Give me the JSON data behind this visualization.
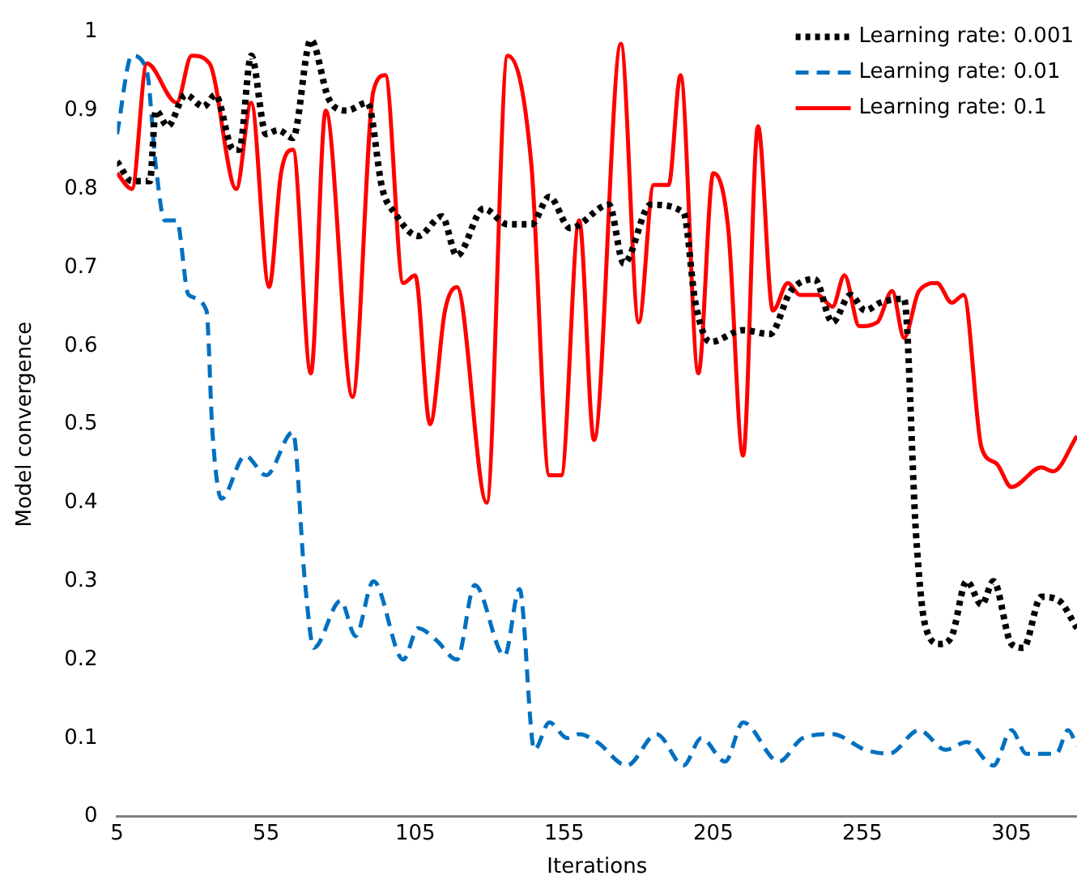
{
  "chart_data": {
    "type": "line",
    "xlabel": "Iterations",
    "ylabel": "Model convergence",
    "xlim": [
      5,
      327
    ],
    "xticks": [
      5,
      55,
      105,
      155,
      205,
      255,
      305
    ],
    "ylim": [
      0,
      1
    ],
    "yticks": [
      0,
      0.1,
      0.2,
      0.3,
      0.4,
      0.5,
      0.6,
      0.7,
      0.8,
      0.9,
      1
    ],
    "grid": false,
    "legend": "top right",
    "marker": "none",
    "series": [
      {
        "name": "Learning rate: 0.001",
        "color": "#000000",
        "line_style": "dotted",
        "x": [
          5,
          10,
          16,
          18,
          22,
          28,
          34,
          38,
          44,
          46,
          50,
          55,
          59,
          64,
          70,
          76,
          82,
          89,
          94,
          98,
          106,
          114,
          119,
          128,
          136,
          144,
          150,
          157,
          170,
          175,
          184,
          195,
          199,
          204,
          215,
          224,
          231,
          239,
          245,
          251,
          256,
          261,
          269,
          273,
          276,
          281,
          285,
          290,
          295,
          299,
          305,
          309,
          315,
          321,
          327
        ],
        "values": [
          0.835,
          0.81,
          0.81,
          0.9,
          0.88,
          0.92,
          0.905,
          0.92,
          0.85,
          0.85,
          0.97,
          0.87,
          0.875,
          0.865,
          0.99,
          0.915,
          0.9,
          0.91,
          0.8,
          0.77,
          0.74,
          0.765,
          0.715,
          0.775,
          0.755,
          0.755,
          0.79,
          0.75,
          0.78,
          0.705,
          0.78,
          0.77,
          0.655,
          0.605,
          0.62,
          0.615,
          0.67,
          0.685,
          0.63,
          0.665,
          0.645,
          0.655,
          0.66,
          0.36,
          0.245,
          0.22,
          0.23,
          0.3,
          0.27,
          0.3,
          0.22,
          0.215,
          0.28,
          0.275,
          0.24
        ]
      },
      {
        "name": "Learning rate: 0.01",
        "color": "#0070c0",
        "line_style": "dashed",
        "x": [
          5,
          10,
          15,
          18,
          21,
          25,
          29,
          35,
          37,
          40,
          48,
          55,
          64,
          68,
          71,
          80,
          85,
          91,
          101,
          106,
          112,
          119,
          125,
          135,
          140,
          145,
          150,
          156,
          160,
          166,
          176,
          186,
          195,
          201,
          209,
          215,
          227,
          235,
          245,
          256,
          264,
          274,
          283,
          290,
          299,
          305,
          310,
          320,
          324,
          327
        ],
        "values": [
          0.87,
          0.97,
          0.95,
          0.83,
          0.76,
          0.76,
          0.665,
          0.645,
          0.49,
          0.405,
          0.46,
          0.435,
          0.49,
          0.3,
          0.215,
          0.275,
          0.23,
          0.3,
          0.2,
          0.24,
          0.225,
          0.2,
          0.295,
          0.205,
          0.29,
          0.085,
          0.12,
          0.1,
          0.105,
          0.095,
          0.065,
          0.105,
          0.065,
          0.1,
          0.07,
          0.12,
          0.07,
          0.1,
          0.105,
          0.085,
          0.08,
          0.11,
          0.085,
          0.095,
          0.065,
          0.11,
          0.08,
          0.08,
          0.11,
          0.09
        ]
      },
      {
        "name": "Learning rate: 0.1",
        "color": "#ff0000",
        "line_style": "solid",
        "x": [
          5,
          10,
          15,
          25,
          30,
          36,
          45,
          50,
          56,
          60,
          64,
          70,
          75,
          84,
          91,
          95,
          101,
          105,
          110,
          115,
          119,
          129,
          136,
          144,
          150,
          154,
          160,
          165,
          174,
          180,
          185,
          190,
          194,
          200,
          205,
          210,
          215,
          220,
          225,
          230,
          234,
          240,
          245,
          249,
          254,
          260,
          265,
          269,
          274,
          280,
          285,
          289,
          295,
          300,
          305,
          315,
          319,
          327
        ],
        "values": [
          0.82,
          0.8,
          0.96,
          0.91,
          0.97,
          0.96,
          0.8,
          0.91,
          0.675,
          0.82,
          0.85,
          0.565,
          0.9,
          0.535,
          0.925,
          0.945,
          0.68,
          0.69,
          0.5,
          0.645,
          0.675,
          0.4,
          0.97,
          0.83,
          0.435,
          0.435,
          0.76,
          0.48,
          0.985,
          0.63,
          0.805,
          0.805,
          0.945,
          0.565,
          0.82,
          0.75,
          0.46,
          0.88,
          0.645,
          0.68,
          0.665,
          0.665,
          0.65,
          0.69,
          0.625,
          0.63,
          0.67,
          0.61,
          0.67,
          0.68,
          0.655,
          0.665,
          0.47,
          0.45,
          0.42,
          0.445,
          0.44,
          0.485
        ]
      }
    ]
  }
}
